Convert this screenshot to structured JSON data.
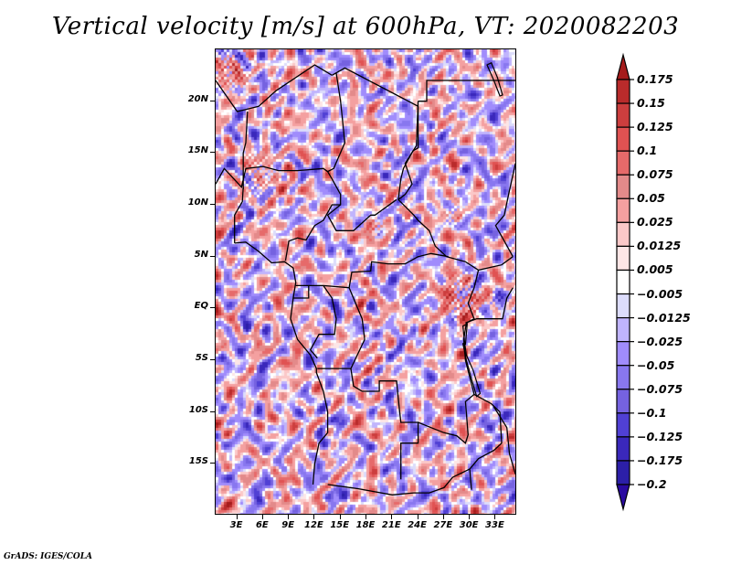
{
  "chart_data": {
    "type": "heatmap",
    "title": "Vertical velocity [m/s] at 600hPa, VT: 2020082203",
    "variable": "Vertical velocity",
    "units": "m/s",
    "level": "600hPa",
    "valid_time": "2020082203",
    "xlabel": "",
    "ylabel": "",
    "x_ticks": [
      "3E",
      "6E",
      "9E",
      "12E",
      "15E",
      "18E",
      "21E",
      "24E",
      "27E",
      "30E",
      "33E"
    ],
    "x_tick_values": [
      3,
      6,
      9,
      12,
      15,
      18,
      21,
      24,
      27,
      30,
      33
    ],
    "y_ticks": [
      "20N",
      "15N",
      "10N",
      "5N",
      "EQ",
      "5S",
      "10S",
      "15S"
    ],
    "y_tick_values": [
      20,
      15,
      10,
      5,
      0,
      -5,
      -10,
      -15
    ],
    "xlim": [
      0.5,
      35.5
    ],
    "ylim": [
      -20,
      25
    ],
    "grid": false,
    "legend_position": "right",
    "colorbar": {
      "levels": [
        -0.2,
        -0.175,
        -0.125,
        -0.1,
        -0.075,
        -0.05,
        -0.025,
        -0.0125,
        -0.005,
        0.005,
        0.0125,
        0.025,
        0.05,
        0.075,
        0.1,
        0.125,
        0.15,
        0.175
      ],
      "labels": [
        "0.175",
        "0.15",
        "0.125",
        "0.1",
        "0.075",
        "0.05",
        "0.025",
        "0.0125",
        "0.005",
        "−0.005",
        "−0.0125",
        "−0.025",
        "−0.05",
        "−0.075",
        "−0.1",
        "−0.125",
        "−0.175",
        "−0.2"
      ],
      "colors_top_to_bottom": [
        "#a51c1c",
        "#b92b2b",
        "#cc3e3e",
        "#e05252",
        "#e66a6a",
        "#e38a8a",
        "#f4a0a0",
        "#fbc8c8",
        "#fde6e6",
        "#ffffff",
        "#dcdcfb",
        "#c0b4fd",
        "#a08cfc",
        "#8877ef",
        "#7562e0",
        "#5040d4",
        "#3a28bb",
        "#2c1fa8",
        "#2a0aa0"
      ],
      "extend": "both"
    },
    "description": "Spatial field of 600hPa vertical velocity over central Africa (approx. 0.5E–35.5E, 20S–25N). Mostly weak mixed positive (red) and negative (blue) values; stronger positive cores near 13N 3E–7E, the northwest corner, and over the East African highlands near 0–2N 28E–30E."
  },
  "footer": {
    "credit": "GrADS: IGES/COLA"
  }
}
